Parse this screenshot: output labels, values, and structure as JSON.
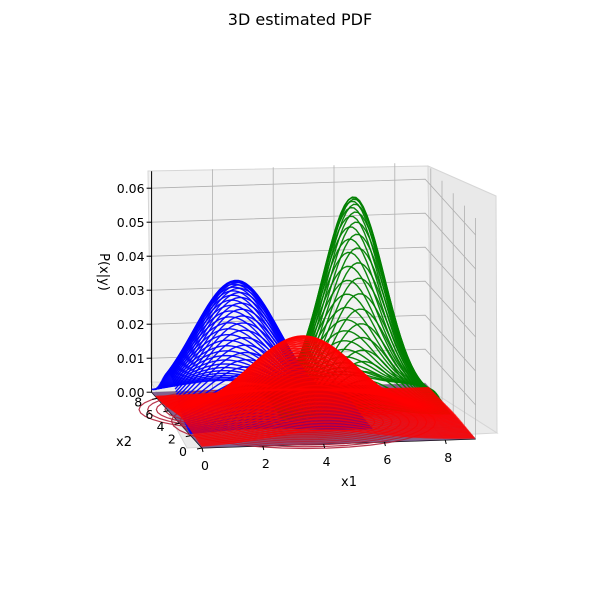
{
  "chart_data": {
    "type": "surface3d",
    "title": "3D estimated PDF",
    "xlabel": "x1",
    "ylabel": "x2",
    "zlabel": "P(x|y)",
    "xlim": [
      0,
      9
    ],
    "ylim": [
      0,
      9
    ],
    "zlim": [
      0,
      0.065
    ],
    "x_ticks": [
      "0",
      "2",
      "4",
      "6",
      "8"
    ],
    "y_ticks": [
      "0",
      "2",
      "4",
      "6",
      "8"
    ],
    "z_ticks": [
      "0.00",
      "0.01",
      "0.02",
      "0.03",
      "0.04",
      "0.05",
      "0.06"
    ],
    "grid": true,
    "series": [
      {
        "color": "#0000ff",
        "mean": [
          2.2,
          5.8
        ],
        "sigma": 1.4,
        "peak": 0.038
      },
      {
        "color": "#008000",
        "mean": [
          6.2,
          6.6
        ],
        "sigma": 1.0,
        "peak": 0.06
      },
      {
        "color": "#ff0000",
        "mean": [
          4.0,
          3.6
        ],
        "sigma": 1.8,
        "peak": 0.025
      }
    ],
    "floor_contours": true
  }
}
